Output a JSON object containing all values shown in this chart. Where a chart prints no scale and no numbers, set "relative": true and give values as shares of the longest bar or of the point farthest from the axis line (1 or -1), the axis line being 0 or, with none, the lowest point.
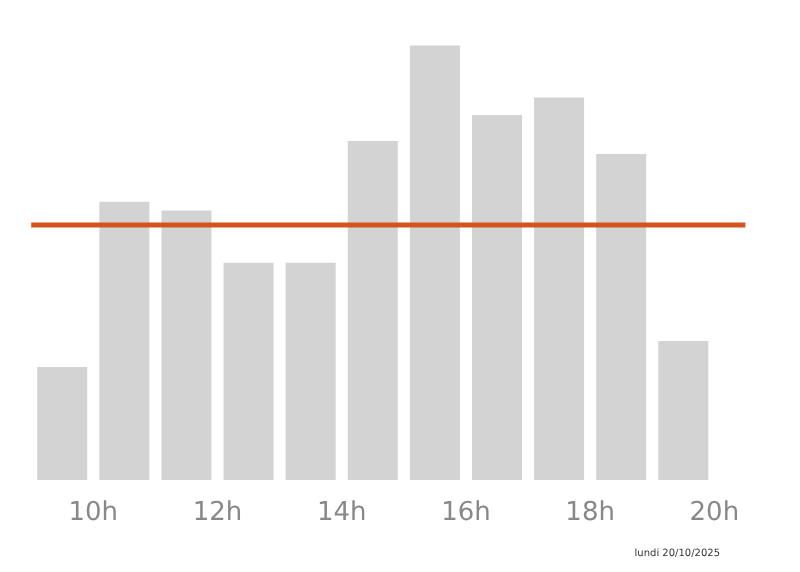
{
  "chart_data": {
    "type": "bar",
    "relative": true,
    "x": [
      9.5,
      10.5,
      11.5,
      12.5,
      13.5,
      14.5,
      15.5,
      16.5,
      17.5,
      18.5,
      19.5
    ],
    "values": [
      0.26,
      0.64,
      0.62,
      0.5,
      0.5,
      0.78,
      1,
      0.84,
      0.88,
      0.75,
      0.32
    ],
    "color": "#d3d3d3",
    "xlim": [
      9,
      20.5
    ],
    "xticks": [
      {
        "value": 10,
        "label": "10h"
      },
      {
        "value": 12,
        "label": "12h"
      },
      {
        "value": 14,
        "label": "14h"
      },
      {
        "value": 16,
        "label": "16h"
      },
      {
        "value": 18,
        "label": "18h"
      },
      {
        "value": 20,
        "label": "20h"
      }
    ],
    "ref_lines": [
      {
        "axis": "y",
        "value": 0.59,
        "label": null,
        "color": "#d4541c"
      }
    ],
    "grid": false,
    "annotations": [
      "lundi 20/10/2025"
    ]
  }
}
